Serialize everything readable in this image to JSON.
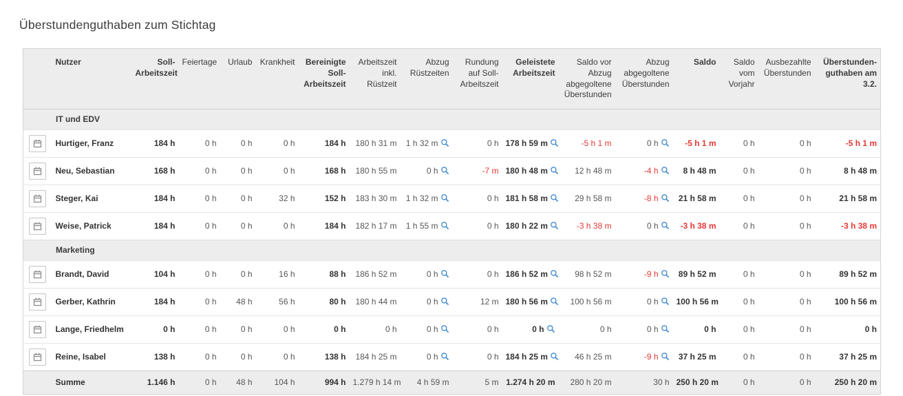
{
  "page": {
    "title": "Überstundenguthaben zum Stichtag"
  },
  "colors": {
    "negative_value": "#e53935",
    "magnifier_icon": "#4a90d2",
    "header_bg": "#ededed"
  },
  "table": {
    "columns": [
      {
        "label": "Nutzer"
      },
      {
        "label": "Soll-Arbeitszeit"
      },
      {
        "label": "Feiertage"
      },
      {
        "label": "Urlaub"
      },
      {
        "label": "Krankheit"
      },
      {
        "label": "Bereinigte Soll-Arbeitszeit"
      },
      {
        "label": "Arbeitszeit inkl. Rüstzeit"
      },
      {
        "label": "Abzug Rüstzeiten"
      },
      {
        "label": "Rundung auf Soll-Arbeitszeit"
      },
      {
        "label": "Geleistete Arbeitszeit"
      },
      {
        "label": "Saldo vor Abzug abgegoltene Überstunden"
      },
      {
        "label": "Abzug abgegoltene Überstunden"
      },
      {
        "label": "Saldo"
      },
      {
        "label": "Saldo vom Vorjahr"
      },
      {
        "label": "Ausbezahlte Über­stunden"
      },
      {
        "label": "Überstunden­guthaben am 3.2."
      }
    ],
    "groups": [
      {
        "name": "IT und EDV",
        "rows": [
          {
            "user": "Hurtiger, Franz",
            "values": [
              "184 h",
              "0 h",
              "0 h",
              "0 h",
              "184 h",
              "180 h 31 m",
              "1 h 32 m",
              "0 h",
              "178 h 59 m",
              "-5 h 1 m",
              "0 h",
              "-5 h 1 m",
              "0 h",
              "0 h",
              "-5 h 1 m"
            ]
          },
          {
            "user": "Neu, Sebastian",
            "values": [
              "168 h",
              "0 h",
              "0 h",
              "0 h",
              "168 h",
              "180 h 55 m",
              "0 h",
              "-7 m",
              "180 h 48 m",
              "12 h 48 m",
              "-4 h",
              "8 h 48 m",
              "0 h",
              "0 h",
              "8 h 48 m"
            ]
          },
          {
            "user": "Steger, Kai",
            "values": [
              "184 h",
              "0 h",
              "0 h",
              "32 h",
              "152 h",
              "183 h 30 m",
              "1 h 32 m",
              "0 h",
              "181 h 58 m",
              "29 h 58 m",
              "-8 h",
              "21 h 58 m",
              "0 h",
              "0 h",
              "21 h 58 m"
            ]
          },
          {
            "user": "Weise, Patrick",
            "values": [
              "184 h",
              "0 h",
              "0 h",
              "0 h",
              "184 h",
              "182 h 17 m",
              "1 h 55 m",
              "0 h",
              "180 h 22 m",
              "-3 h 38 m",
              "0 h",
              "-3 h 38 m",
              "0 h",
              "0 h",
              "-3 h 38 m"
            ]
          }
        ]
      },
      {
        "name": "Marketing",
        "rows": [
          {
            "user": "Brandt, David",
            "values": [
              "104 h",
              "0 h",
              "0 h",
              "16 h",
              "88 h",
              "186 h 52 m",
              "0 h",
              "0 h",
              "186 h 52 m",
              "98 h 52 m",
              "-9 h",
              "89 h 52 m",
              "0 h",
              "0 h",
              "89 h 52 m"
            ]
          },
          {
            "user": "Gerber, Kathrin",
            "values": [
              "184 h",
              "0 h",
              "48 h",
              "56 h",
              "80 h",
              "180 h 44 m",
              "0 h",
              "12 m",
              "180 h 56 m",
              "100 h 56 m",
              "0 h",
              "100 h 56 m",
              "0 h",
              "0 h",
              "100 h 56 m"
            ]
          },
          {
            "user": "Lange, Friedhelm",
            "values": [
              "0 h",
              "0 h",
              "0 h",
              "0 h",
              "0 h",
              "0 h",
              "0 h",
              "0 h",
              "0 h",
              "0 h",
              "0 h",
              "0 h",
              "0 h",
              "0 h",
              "0 h"
            ]
          },
          {
            "user": "Reine, Isabel",
            "values": [
              "138 h",
              "0 h",
              "0 h",
              "0 h",
              "138 h",
              "184 h 25 m",
              "0 h",
              "0 h",
              "184 h 25 m",
              "46 h 25 m",
              "-9 h",
              "37 h 25 m",
              "0 h",
              "0 h",
              "37 h 25 m"
            ]
          }
        ]
      }
    ],
    "sum": {
      "label": "Summe",
      "values": [
        "1.146 h",
        "0 h",
        "48 h",
        "104 h",
        "994 h",
        "1.279 h 14 m",
        "4 h 59 m",
        "5 m",
        "1.274 h 20 m",
        "280 h 20 m",
        "30 h",
        "250 h 20 m",
        "0 h",
        "0 h",
        "250 h 20 m"
      ]
    }
  }
}
